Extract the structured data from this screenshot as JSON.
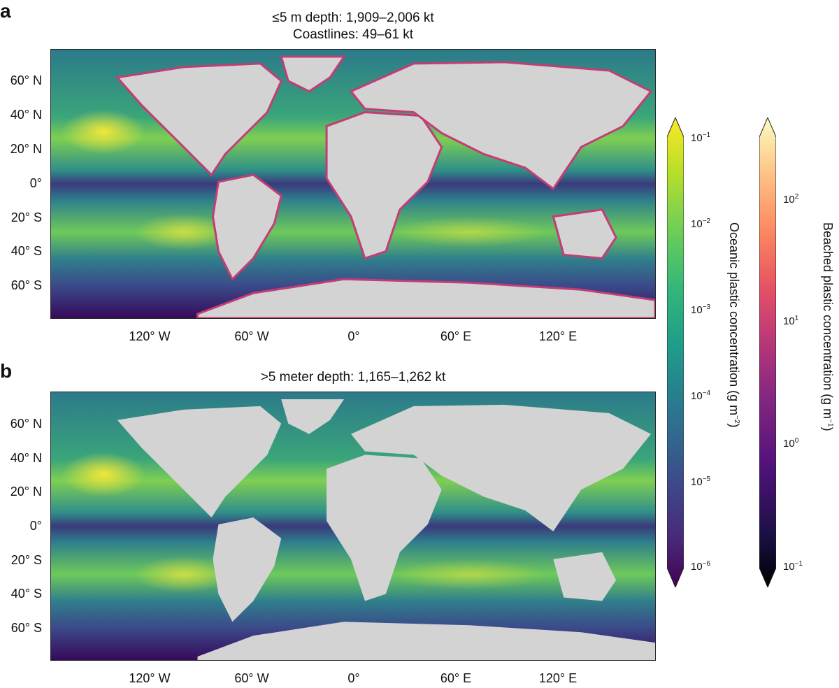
{
  "panel_a": {
    "letter": "a",
    "title_line1": "≤5 m depth: 1,909–2,006 kt",
    "title_line2": "Coastlines: 49–61 kt"
  },
  "panel_b": {
    "letter": "b",
    "title_line1": ">5 meter depth: 1,165–1,262 kt"
  },
  "lat_ticks": [
    "60° N",
    "40° N",
    "20° N",
    "0°",
    "20° S",
    "40° S",
    "60° S"
  ],
  "lon_ticks": [
    "120° W",
    "60° W",
    "0°",
    "60° E",
    "120° E"
  ],
  "colorbar_oceanic": {
    "title": "Oceanic plastic concentration (g m",
    "title_exp": "−2",
    "title_end": ")",
    "ticks": [
      {
        "base": "10",
        "exp": "−1"
      },
      {
        "base": "10",
        "exp": "−2"
      },
      {
        "base": "10",
        "exp": "−3"
      },
      {
        "base": "10",
        "exp": "−4"
      },
      {
        "base": "10",
        "exp": "−5"
      },
      {
        "base": "10",
        "exp": "−6"
      }
    ],
    "colors": [
      "#fde725",
      "#b5de2b",
      "#6ece58",
      "#35b779",
      "#1f9e89",
      "#26828e",
      "#31688e",
      "#3e4989",
      "#482878",
      "#440154"
    ]
  },
  "colorbar_beached": {
    "title": "Beached plastic concentration (g m",
    "title_exp": "−1",
    "title_end": ")",
    "ticks": [
      {
        "base": "10",
        "exp": "2"
      },
      {
        "base": "10",
        "exp": "1"
      },
      {
        "base": "10",
        "exp": "0"
      },
      {
        "base": "10",
        "exp": "−1"
      }
    ],
    "colors": [
      "#fcfdbf",
      "#fec287",
      "#fc8961",
      "#e75263",
      "#b73779",
      "#832681",
      "#51127c",
      "#1d1147",
      "#000004"
    ]
  },
  "colors": {
    "land": "#d3d3d3",
    "ocean_mid": "#2a8a86",
    "ocean_high": "#bfe03a",
    "ocean_low": "#3b2b6e",
    "coast_line": "#c43c75"
  }
}
